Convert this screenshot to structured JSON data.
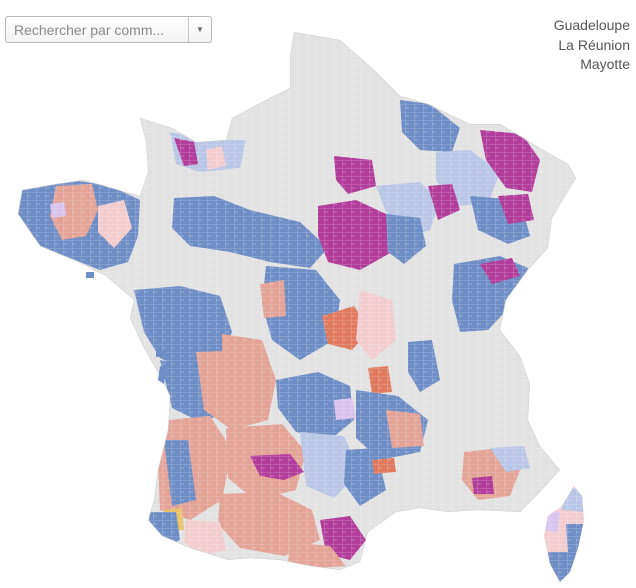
{
  "search": {
    "placeholder": "Rechercher par comm..."
  },
  "territories": [
    "Guadeloupe",
    "La Réunion",
    "Mayotte"
  ],
  "colors": {
    "unassigned": "#e2e2e2",
    "blue": "#6f8ec6",
    "light_blue": "#b9c6e6",
    "salmon": "#e3a497",
    "light_pink": "#f2cdd0",
    "magenta": "#b23d9a",
    "orange_red": "#e07a5f",
    "lavender": "#d9c4ee",
    "yellow": "#e8c268"
  }
}
